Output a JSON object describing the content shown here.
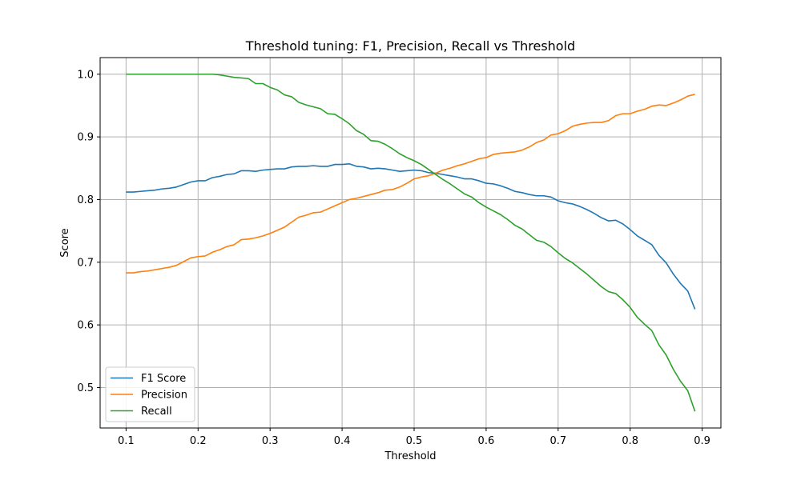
{
  "chart_data": {
    "type": "line",
    "title": "Threshold tuning: F1, Precision, Recall vs Threshold",
    "xlabel": "Threshold",
    "ylabel": "Score",
    "xlim": [
      0.064,
      0.926
    ],
    "ylim": [
      0.4355,
      1.0265
    ],
    "grid": true,
    "legend_position": "lower-left",
    "x_ticks": [
      {
        "value": 0.1,
        "label": "0.1"
      },
      {
        "value": 0.2,
        "label": "0.2"
      },
      {
        "value": 0.3,
        "label": "0.3"
      },
      {
        "value": 0.4,
        "label": "0.4"
      },
      {
        "value": 0.5,
        "label": "0.5"
      },
      {
        "value": 0.6,
        "label": "0.6"
      },
      {
        "value": 0.7,
        "label": "0.7"
      },
      {
        "value": 0.8,
        "label": "0.8"
      },
      {
        "value": 0.9,
        "label": "0.9"
      }
    ],
    "y_ticks": [
      {
        "value": 0.5,
        "label": "0.5"
      },
      {
        "value": 0.6,
        "label": "0.6"
      },
      {
        "value": 0.7,
        "label": "0.7"
      },
      {
        "value": 0.8,
        "label": "0.8"
      },
      {
        "value": 0.9,
        "label": "0.9"
      },
      {
        "value": 1.0,
        "label": "1.0"
      }
    ],
    "series": [
      {
        "name": "F1 Score",
        "color": "#1f77b4",
        "points": [
          [
            0.1,
            0.812
          ],
          [
            0.11,
            0.812
          ],
          [
            0.12,
            0.813
          ],
          [
            0.13,
            0.814
          ],
          [
            0.14,
            0.815
          ],
          [
            0.15,
            0.817
          ],
          [
            0.16,
            0.818
          ],
          [
            0.17,
            0.82
          ],
          [
            0.18,
            0.824
          ],
          [
            0.19,
            0.828
          ],
          [
            0.2,
            0.83
          ],
          [
            0.21,
            0.83
          ],
          [
            0.22,
            0.835
          ],
          [
            0.23,
            0.837
          ],
          [
            0.24,
            0.84
          ],
          [
            0.25,
            0.841
          ],
          [
            0.26,
            0.846
          ],
          [
            0.27,
            0.846
          ],
          [
            0.28,
            0.845
          ],
          [
            0.29,
            0.847
          ],
          [
            0.3,
            0.848
          ],
          [
            0.31,
            0.849
          ],
          [
            0.32,
            0.849
          ],
          [
            0.33,
            0.852
          ],
          [
            0.34,
            0.853
          ],
          [
            0.35,
            0.853
          ],
          [
            0.36,
            0.854
          ],
          [
            0.37,
            0.853
          ],
          [
            0.38,
            0.853
          ],
          [
            0.39,
            0.856
          ],
          [
            0.4,
            0.856
          ],
          [
            0.41,
            0.857
          ],
          [
            0.42,
            0.853
          ],
          [
            0.43,
            0.852
          ],
          [
            0.44,
            0.849
          ],
          [
            0.45,
            0.85
          ],
          [
            0.46,
            0.849
          ],
          [
            0.47,
            0.847
          ],
          [
            0.48,
            0.845
          ],
          [
            0.49,
            0.846
          ],
          [
            0.5,
            0.847
          ],
          [
            0.51,
            0.846
          ],
          [
            0.52,
            0.843
          ],
          [
            0.53,
            0.842
          ],
          [
            0.54,
            0.84
          ],
          [
            0.55,
            0.838
          ],
          [
            0.56,
            0.836
          ],
          [
            0.57,
            0.833
          ],
          [
            0.58,
            0.833
          ],
          [
            0.59,
            0.83
          ],
          [
            0.6,
            0.826
          ],
          [
            0.61,
            0.825
          ],
          [
            0.62,
            0.822
          ],
          [
            0.63,
            0.818
          ],
          [
            0.64,
            0.813
          ],
          [
            0.65,
            0.811
          ],
          [
            0.66,
            0.808
          ],
          [
            0.67,
            0.806
          ],
          [
            0.68,
            0.806
          ],
          [
            0.69,
            0.804
          ],
          [
            0.7,
            0.798
          ],
          [
            0.71,
            0.795
          ],
          [
            0.72,
            0.793
          ],
          [
            0.73,
            0.789
          ],
          [
            0.74,
            0.784
          ],
          [
            0.75,
            0.778
          ],
          [
            0.76,
            0.771
          ],
          [
            0.77,
            0.766
          ],
          [
            0.78,
            0.767
          ],
          [
            0.79,
            0.761
          ],
          [
            0.8,
            0.752
          ],
          [
            0.81,
            0.742
          ],
          [
            0.82,
            0.735
          ],
          [
            0.83,
            0.728
          ],
          [
            0.84,
            0.711
          ],
          [
            0.85,
            0.699
          ],
          [
            0.86,
            0.681
          ],
          [
            0.87,
            0.666
          ],
          [
            0.88,
            0.654
          ],
          [
            0.89,
            0.625
          ]
        ]
      },
      {
        "name": "Precision",
        "color": "#ff7f0e",
        "points": [
          [
            0.1,
            0.683
          ],
          [
            0.11,
            0.683
          ],
          [
            0.12,
            0.685
          ],
          [
            0.13,
            0.686
          ],
          [
            0.14,
            0.688
          ],
          [
            0.15,
            0.69
          ],
          [
            0.16,
            0.692
          ],
          [
            0.17,
            0.695
          ],
          [
            0.18,
            0.701
          ],
          [
            0.19,
            0.707
          ],
          [
            0.2,
            0.709
          ],
          [
            0.21,
            0.71
          ],
          [
            0.22,
            0.716
          ],
          [
            0.23,
            0.72
          ],
          [
            0.24,
            0.725
          ],
          [
            0.25,
            0.728
          ],
          [
            0.26,
            0.736
          ],
          [
            0.27,
            0.737
          ],
          [
            0.28,
            0.739
          ],
          [
            0.29,
            0.742
          ],
          [
            0.3,
            0.746
          ],
          [
            0.31,
            0.751
          ],
          [
            0.32,
            0.756
          ],
          [
            0.33,
            0.764
          ],
          [
            0.34,
            0.772
          ],
          [
            0.35,
            0.775
          ],
          [
            0.36,
            0.779
          ],
          [
            0.37,
            0.78
          ],
          [
            0.38,
            0.785
          ],
          [
            0.39,
            0.79
          ],
          [
            0.4,
            0.795
          ],
          [
            0.41,
            0.8
          ],
          [
            0.42,
            0.802
          ],
          [
            0.43,
            0.805
          ],
          [
            0.44,
            0.808
          ],
          [
            0.45,
            0.811
          ],
          [
            0.46,
            0.815
          ],
          [
            0.47,
            0.816
          ],
          [
            0.48,
            0.82
          ],
          [
            0.49,
            0.826
          ],
          [
            0.5,
            0.833
          ],
          [
            0.51,
            0.836
          ],
          [
            0.52,
            0.838
          ],
          [
            0.53,
            0.842
          ],
          [
            0.54,
            0.847
          ],
          [
            0.55,
            0.85
          ],
          [
            0.56,
            0.854
          ],
          [
            0.57,
            0.857
          ],
          [
            0.58,
            0.861
          ],
          [
            0.59,
            0.865
          ],
          [
            0.6,
            0.867
          ],
          [
            0.61,
            0.872
          ],
          [
            0.62,
            0.874
          ],
          [
            0.63,
            0.875
          ],
          [
            0.64,
            0.876
          ],
          [
            0.65,
            0.879
          ],
          [
            0.66,
            0.884
          ],
          [
            0.67,
            0.891
          ],
          [
            0.68,
            0.895
          ],
          [
            0.69,
            0.903
          ],
          [
            0.7,
            0.905
          ],
          [
            0.71,
            0.91
          ],
          [
            0.72,
            0.917
          ],
          [
            0.73,
            0.92
          ],
          [
            0.74,
            0.922
          ],
          [
            0.75,
            0.923
          ],
          [
            0.76,
            0.923
          ],
          [
            0.77,
            0.926
          ],
          [
            0.78,
            0.934
          ],
          [
            0.79,
            0.937
          ],
          [
            0.8,
            0.937
          ],
          [
            0.81,
            0.941
          ],
          [
            0.82,
            0.944
          ],
          [
            0.83,
            0.949
          ],
          [
            0.84,
            0.951
          ],
          [
            0.85,
            0.95
          ],
          [
            0.86,
            0.954
          ],
          [
            0.87,
            0.959
          ],
          [
            0.88,
            0.965
          ],
          [
            0.89,
            0.968
          ]
        ]
      },
      {
        "name": "Recall",
        "color": "#2ca02c",
        "points": [
          [
            0.1,
            1.0
          ],
          [
            0.11,
            1.0
          ],
          [
            0.12,
            1.0
          ],
          [
            0.13,
            1.0
          ],
          [
            0.14,
            1.0
          ],
          [
            0.15,
            1.0
          ],
          [
            0.16,
            1.0
          ],
          [
            0.17,
            1.0
          ],
          [
            0.18,
            1.0
          ],
          [
            0.19,
            1.0
          ],
          [
            0.2,
            1.0
          ],
          [
            0.21,
            1.0
          ],
          [
            0.22,
            1.0
          ],
          [
            0.23,
            0.999
          ],
          [
            0.24,
            0.997
          ],
          [
            0.25,
            0.995
          ],
          [
            0.26,
            0.994
          ],
          [
            0.27,
            0.993
          ],
          [
            0.28,
            0.985
          ],
          [
            0.29,
            0.985
          ],
          [
            0.3,
            0.979
          ],
          [
            0.31,
            0.975
          ],
          [
            0.32,
            0.967
          ],
          [
            0.33,
            0.964
          ],
          [
            0.34,
            0.955
          ],
          [
            0.35,
            0.951
          ],
          [
            0.36,
            0.948
          ],
          [
            0.37,
            0.945
          ],
          [
            0.38,
            0.937
          ],
          [
            0.39,
            0.936
          ],
          [
            0.4,
            0.929
          ],
          [
            0.41,
            0.921
          ],
          [
            0.42,
            0.91
          ],
          [
            0.43,
            0.904
          ],
          [
            0.44,
            0.894
          ],
          [
            0.45,
            0.893
          ],
          [
            0.46,
            0.888
          ],
          [
            0.47,
            0.881
          ],
          [
            0.48,
            0.873
          ],
          [
            0.49,
            0.867
          ],
          [
            0.5,
            0.862
          ],
          [
            0.51,
            0.856
          ],
          [
            0.52,
            0.848
          ],
          [
            0.53,
            0.84
          ],
          [
            0.54,
            0.832
          ],
          [
            0.55,
            0.825
          ],
          [
            0.56,
            0.817
          ],
          [
            0.57,
            0.809
          ],
          [
            0.58,
            0.804
          ],
          [
            0.59,
            0.795
          ],
          [
            0.6,
            0.788
          ],
          [
            0.61,
            0.782
          ],
          [
            0.62,
            0.776
          ],
          [
            0.63,
            0.768
          ],
          [
            0.64,
            0.759
          ],
          [
            0.65,
            0.753
          ],
          [
            0.66,
            0.744
          ],
          [
            0.67,
            0.735
          ],
          [
            0.68,
            0.732
          ],
          [
            0.69,
            0.725
          ],
          [
            0.7,
            0.715
          ],
          [
            0.71,
            0.706
          ],
          [
            0.72,
            0.699
          ],
          [
            0.73,
            0.69
          ],
          [
            0.74,
            0.681
          ],
          [
            0.75,
            0.671
          ],
          [
            0.76,
            0.661
          ],
          [
            0.77,
            0.653
          ],
          [
            0.78,
            0.65
          ],
          [
            0.79,
            0.64
          ],
          [
            0.8,
            0.628
          ],
          [
            0.81,
            0.612
          ],
          [
            0.82,
            0.601
          ],
          [
            0.83,
            0.591
          ],
          [
            0.84,
            0.568
          ],
          [
            0.85,
            0.552
          ],
          [
            0.86,
            0.529
          ],
          [
            0.87,
            0.51
          ],
          [
            0.88,
            0.495
          ],
          [
            0.89,
            0.462
          ]
        ]
      }
    ]
  }
}
